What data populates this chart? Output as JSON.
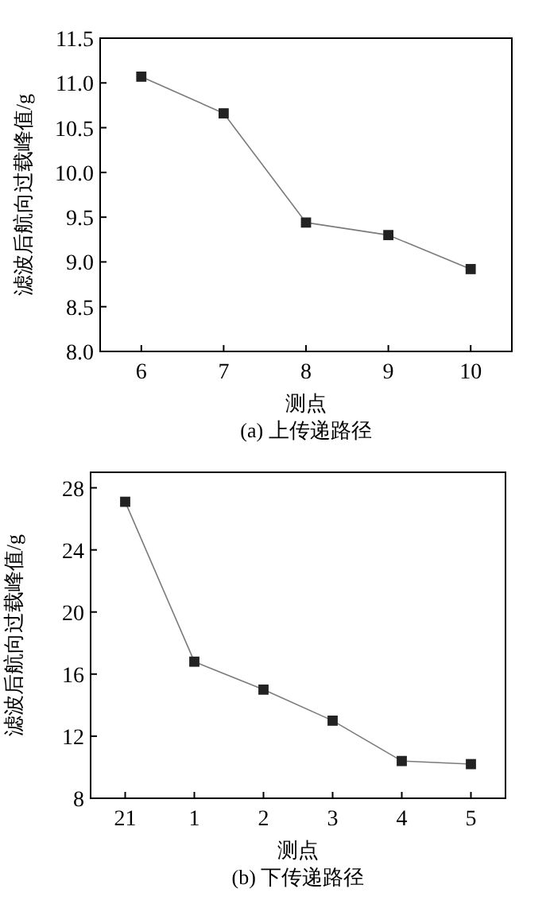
{
  "chart_data": [
    {
      "type": "line",
      "xlabel": "测点",
      "ylabel": "滤波后航向过载峰值/g",
      "annotations": [
        "(a) 上传递路径"
      ],
      "x": [
        6,
        7,
        8,
        9,
        10
      ],
      "xlim": [
        5.5,
        10.5
      ],
      "xticks": [
        6,
        7,
        8,
        9,
        10
      ],
      "ylim": [
        8.0,
        11.5
      ],
      "yticks": [
        {
          "value": 8,
          "label": "8.0"
        },
        {
          "value": 8.5,
          "label": "8.5"
        },
        {
          "value": 9,
          "label": "9.0"
        },
        {
          "value": 9.5,
          "label": "9.5"
        },
        {
          "value": 10,
          "label": "10.0"
        },
        {
          "value": 10.5,
          "label": "10.5"
        },
        {
          "value": 11,
          "label": "11.0"
        },
        {
          "value": 11.5,
          "label": "11.5"
        }
      ],
      "marker": "square",
      "line_style": "solid",
      "series": [
        {
          "color": "#222222",
          "values": [
            11.07,
            10.66,
            9.44,
            9.3,
            8.92
          ]
        }
      ]
    },
    {
      "type": "line",
      "xlabel": "测点",
      "ylabel": "滤波后航向过载峰值/g",
      "annotations": [
        "(b) 下传递路径"
      ],
      "categories": [
        "21",
        "1",
        "2",
        "3",
        "4",
        "5"
      ],
      "ylim": [
        8,
        29
      ],
      "yticks": [
        8,
        12,
        16,
        20,
        24,
        28
      ],
      "marker": "square",
      "line_style": "solid",
      "series": [
        {
          "color": "#222222",
          "values": [
            27.1,
            16.8,
            15.0,
            13.0,
            10.4,
            10.2
          ]
        }
      ]
    }
  ]
}
